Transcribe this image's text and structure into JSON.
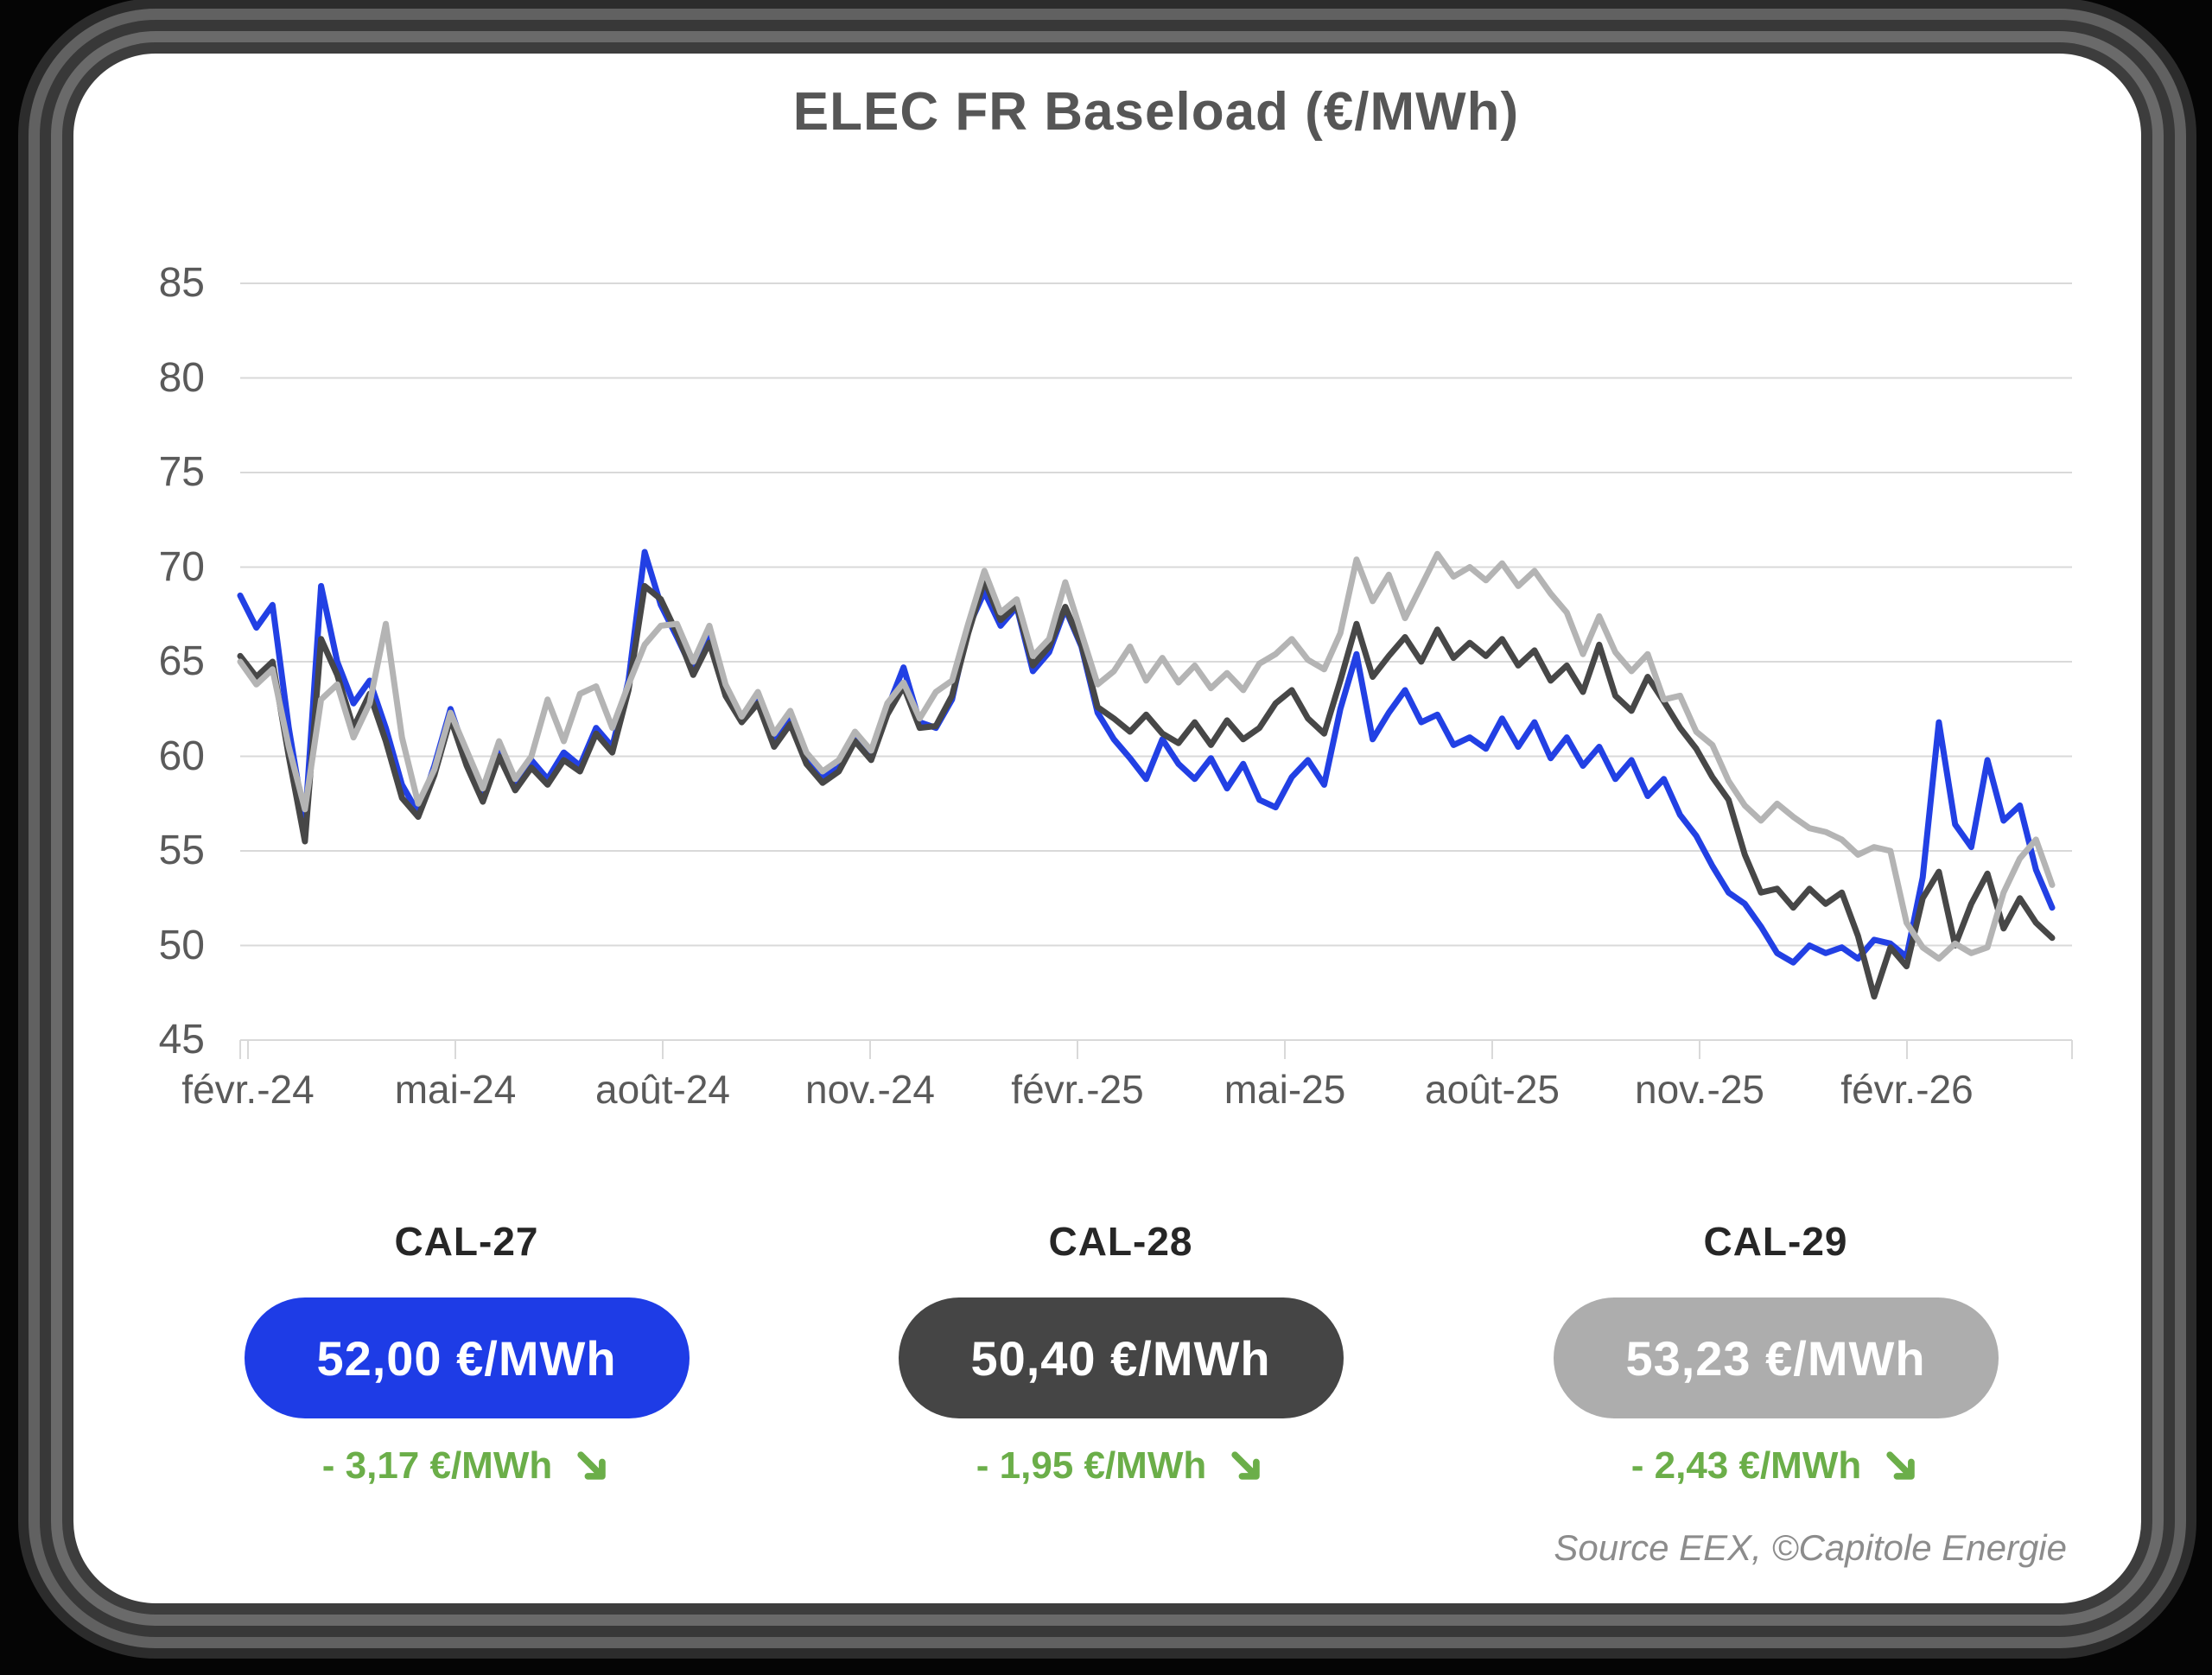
{
  "title": "ELEC FR Baseload (€/MWh)",
  "source": "Source EEX, ©Capitole Energie",
  "colors": {
    "background": "#050505",
    "card": "#ffffff",
    "grid": "#d9d9d9",
    "axis_text": "#5a5a5a",
    "title_text": "#565656",
    "badge_title_text": "#262626",
    "delta_green": "#6bae49",
    "cal27_blue": "#2240e4",
    "cal28_dark_gray": "#474747",
    "cal29_light_gray": "#b4b4b4",
    "source_text": "#8c8c8c"
  },
  "chart_data": {
    "type": "line",
    "title": "ELEC FR Baseload (€/MWh)",
    "ylabel": "",
    "xlabel": "",
    "ylim": [
      45,
      85
    ],
    "y_ticks": [
      85,
      80,
      75,
      70,
      65,
      60,
      55,
      50,
      45
    ],
    "x_tick_labels": [
      "févr.-24",
      "mai-24",
      "août-24",
      "nov.-24",
      "févr.-25",
      "mai-25",
      "août-25",
      "nov.-25",
      "févr.-26"
    ],
    "grid": true,
    "legend_position": "none",
    "sampling": "weekly",
    "series": [
      {
        "name": "CAL-27",
        "color": "#2240e4",
        "values": [
          68.5,
          66.8,
          68.0,
          61.5,
          56.4,
          69.0,
          65.0,
          62.8,
          64.0,
          61.5,
          58.5,
          57.0,
          59.5,
          62.5,
          60.0,
          58.0,
          60.5,
          58.5,
          59.8,
          58.8,
          60.2,
          59.5,
          61.5,
          60.5,
          64.0,
          70.8,
          68.0,
          66.3,
          64.5,
          66.3,
          63.5,
          62.0,
          63.2,
          60.8,
          62.0,
          59.8,
          58.9,
          59.4,
          61.0,
          60.0,
          62.5,
          64.7,
          61.8,
          61.5,
          63.0,
          66.8,
          68.7,
          66.9,
          67.9,
          64.5,
          65.5,
          67.8,
          65.8,
          62.3,
          60.9,
          59.9,
          58.8,
          60.9,
          59.6,
          58.8,
          59.9,
          58.3,
          59.6,
          57.7,
          57.3,
          58.9,
          59.8,
          58.5,
          62.5,
          65.4,
          60.9,
          62.3,
          63.5,
          61.8,
          62.2,
          60.6,
          61.0,
          60.4,
          62.0,
          60.5,
          61.8,
          59.9,
          61.0,
          59.5,
          60.5,
          58.8,
          59.8,
          57.9,
          58.8,
          56.9,
          55.8,
          54.2,
          52.8,
          52.2,
          51.0,
          49.6,
          49.1,
          50.0,
          49.6,
          49.9,
          49.3,
          50.3,
          50.1,
          49.4,
          53.6,
          61.8,
          56.4,
          55.2,
          59.8,
          56.6,
          57.4,
          54.0,
          52.0
        ]
      },
      {
        "name": "CAL-28",
        "color": "#474747",
        "values": [
          65.3,
          64.2,
          65.0,
          60.0,
          55.5,
          66.2,
          64.3,
          61.5,
          63.3,
          60.8,
          57.8,
          56.8,
          59.0,
          62.0,
          59.5,
          57.6,
          60.0,
          58.2,
          59.4,
          58.5,
          59.8,
          59.2,
          61.2,
          60.2,
          63.5,
          69.0,
          68.3,
          66.5,
          64.3,
          66.0,
          63.2,
          61.8,
          62.8,
          60.5,
          61.7,
          59.6,
          58.6,
          59.2,
          60.8,
          59.8,
          62.2,
          63.7,
          61.5,
          61.6,
          63.2,
          66.5,
          69.3,
          67.2,
          68.0,
          64.8,
          65.8,
          67.9,
          65.9,
          62.6,
          62.0,
          61.3,
          62.2,
          61.2,
          60.7,
          61.8,
          60.6,
          61.9,
          60.9,
          61.5,
          62.8,
          63.5,
          62.0,
          61.2,
          64.0,
          67.0,
          64.2,
          65.3,
          66.3,
          65.0,
          66.7,
          65.2,
          66.0,
          65.3,
          66.2,
          64.8,
          65.6,
          64.0,
          64.8,
          63.4,
          65.9,
          63.2,
          62.4,
          64.2,
          62.9,
          61.5,
          60.4,
          58.9,
          57.7,
          54.8,
          52.8,
          53.0,
          52.0,
          53.0,
          52.2,
          52.8,
          50.5,
          47.3,
          49.9,
          48.9,
          52.5,
          53.9,
          50.0,
          52.2,
          53.8,
          50.9,
          52.5,
          51.2,
          50.4
        ]
      },
      {
        "name": "CAL-29",
        "color": "#b4b4b4",
        "values": [
          65.0,
          63.8,
          64.6,
          60.5,
          57.2,
          63.0,
          63.8,
          61.0,
          62.8,
          67.0,
          61.0,
          57.5,
          59.3,
          62.3,
          60.3,
          58.3,
          60.8,
          58.8,
          60.0,
          63.0,
          60.8,
          63.3,
          63.7,
          61.5,
          63.8,
          65.9,
          66.9,
          67.0,
          65.0,
          66.9,
          63.8,
          62.1,
          63.4,
          61.2,
          62.4,
          60.2,
          59.2,
          59.8,
          61.3,
          60.3,
          62.8,
          63.9,
          62.0,
          63.4,
          64.0,
          67.0,
          69.8,
          67.6,
          68.3,
          65.3,
          66.2,
          69.2,
          66.5,
          63.8,
          64.5,
          65.8,
          64.0,
          65.2,
          63.9,
          64.8,
          63.6,
          64.4,
          63.5,
          64.9,
          65.4,
          66.2,
          65.1,
          64.6,
          66.5,
          70.4,
          68.2,
          69.6,
          67.3,
          69.0,
          70.7,
          69.5,
          70.0,
          69.3,
          70.2,
          69.0,
          69.8,
          68.6,
          67.6,
          65.4,
          67.4,
          65.5,
          64.5,
          65.4,
          63.0,
          63.2,
          61.3,
          60.6,
          58.7,
          57.4,
          56.6,
          57.5,
          56.8,
          56.2,
          56.0,
          55.6,
          54.8,
          55.2,
          55.0,
          51.2,
          49.9,
          49.3,
          50.1,
          49.6,
          49.9,
          52.8,
          54.6,
          55.6,
          53.2
        ]
      }
    ]
  },
  "badges": [
    {
      "name": "CAL-27",
      "price": "52,00 €/MWh",
      "delta": "- 3,17 €/MWh",
      "trend": "down",
      "pill_color": "#1e3ce6",
      "delta_color": "#6bae49"
    },
    {
      "name": "CAL-28",
      "price": "50,40 €/MWh",
      "delta": "- 1,95 €/MWh",
      "trend": "down",
      "pill_color": "#454545",
      "delta_color": "#6bae49"
    },
    {
      "name": "CAL-29",
      "price": "53,23 €/MWh",
      "delta": "- 2,43 €/MWh",
      "trend": "down",
      "pill_color": "#adadad",
      "delta_color": "#6bae49"
    }
  ]
}
